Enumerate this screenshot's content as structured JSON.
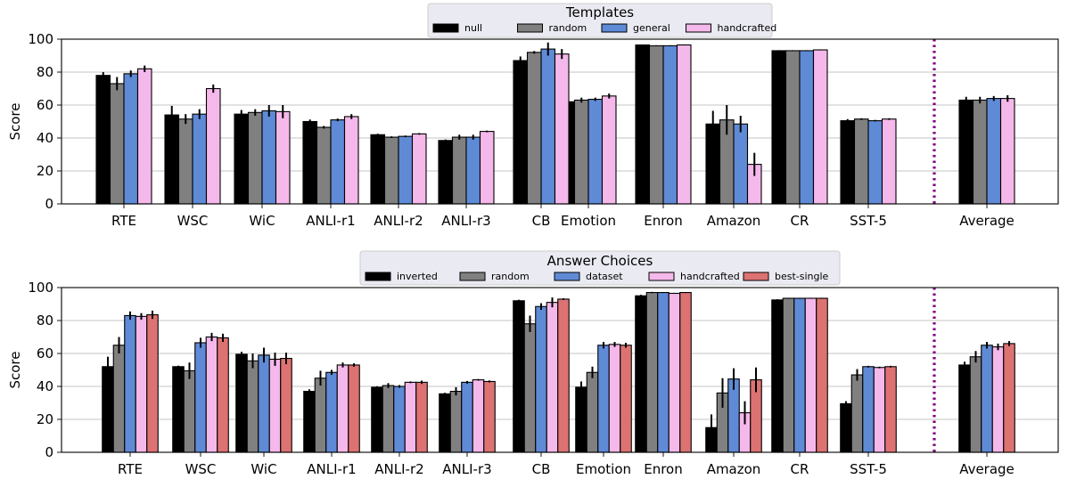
{
  "chart_data": [
    {
      "type": "bar",
      "legend_title": "Templates",
      "legend_position": "top-center",
      "ylabel": "Score",
      "ylim": [
        0,
        100
      ],
      "yticks": [
        0,
        20,
        40,
        60,
        80,
        100
      ],
      "grid": "horizontal",
      "categories": [
        "RTE",
        "WSC",
        "WiC",
        "ANLI-r1",
        "ANLI-r2",
        "ANLI-r3",
        "CB",
        "Emotion",
        "Enron",
        "Amazon",
        "CR",
        "SST-5",
        "Average"
      ],
      "separator_before": "Average",
      "series": [
        {
          "name": "null",
          "color": "#000000",
          "values": [
            78,
            54,
            54.5,
            50,
            42,
            38.5,
            87,
            62,
            96.5,
            48.5,
            93,
            50.5,
            63
          ],
          "errors": [
            2,
            5.5,
            2.5,
            1.2,
            0.6,
            0.6,
            2.5,
            1,
            0.3,
            8,
            0.3,
            1,
            2
          ]
        },
        {
          "name": "random",
          "color": "#808080",
          "values": [
            73,
            51.5,
            55.5,
            46.5,
            40.5,
            40.5,
            92,
            63,
            96,
            51,
            93,
            51.5,
            63
          ],
          "errors": [
            4,
            3,
            2,
            0.8,
            0.5,
            1.5,
            0.8,
            1.5,
            0.3,
            9,
            0.3,
            0.5,
            2
          ]
        },
        {
          "name": "general",
          "color": "#5f8ad6",
          "values": [
            79,
            54.5,
            56.5,
            51,
            41,
            40.5,
            94,
            63.5,
            96,
            48.5,
            93,
            50.5,
            64
          ],
          "errors": [
            2,
            3,
            3.5,
            0.8,
            0.5,
            1.5,
            4,
            1,
            0.3,
            5,
            0.3,
            0.5,
            1.5
          ]
        },
        {
          "name": "handcrafted",
          "color": "#f5b8ea",
          "values": [
            82,
            70,
            56,
            53,
            42.5,
            44,
            91,
            65.5,
            96.5,
            24,
            93.5,
            51.5,
            64
          ],
          "errors": [
            2,
            2.5,
            4,
            1.5,
            0.5,
            0.5,
            3,
            1.5,
            0.3,
            7,
            0.3,
            0.5,
            2
          ]
        }
      ]
    },
    {
      "type": "bar",
      "legend_title": "Answer Choices",
      "legend_position": "top-center",
      "ylabel": "Score",
      "ylim": [
        0,
        100
      ],
      "yticks": [
        0,
        20,
        40,
        60,
        80,
        100
      ],
      "grid": "horizontal",
      "categories": [
        "RTE",
        "WSC",
        "WiC",
        "ANLI-r1",
        "ANLI-r2",
        "ANLI-r3",
        "CB",
        "Emotion",
        "Enron",
        "Amazon",
        "CR",
        "SST-5",
        "Average"
      ],
      "separator_before": "Average",
      "series": [
        {
          "name": "inverted",
          "color": "#000000",
          "values": [
            52,
            52,
            59.5,
            37,
            39.5,
            35.5,
            92,
            39.5,
            95,
            15,
            92.5,
            29.5,
            53
          ],
          "errors": [
            6,
            0.6,
            1.5,
            1.2,
            0.6,
            0.6,
            0.6,
            3.5,
            0.6,
            8,
            0.4,
            1.5,
            2
          ]
        },
        {
          "name": "random",
          "color": "#808080",
          "values": [
            65,
            49.5,
            55.5,
            45,
            40.5,
            37,
            78,
            48.5,
            97,
            36,
            93.5,
            47,
            58
          ],
          "errors": [
            5,
            5,
            4.5,
            4.5,
            1.5,
            2.5,
            5,
            3.5,
            0.4,
            9,
            0.3,
            3.5,
            3.5
          ]
        },
        {
          "name": "dataset",
          "color": "#5f8ad6",
          "values": [
            83,
            66.5,
            59,
            48.5,
            40,
            42.5,
            88.5,
            65,
            97,
            44.5,
            93.5,
            52,
            65
          ],
          "errors": [
            2.5,
            3,
            4.5,
            1.5,
            0.8,
            0.8,
            2,
            2,
            0.3,
            6.5,
            0.3,
            0.5,
            2
          ]
        },
        {
          "name": "handcrafted",
          "color": "#f5b8ea",
          "values": [
            82.5,
            70,
            56.5,
            53,
            42.5,
            44,
            91,
            65.5,
            96.5,
            24,
            93.5,
            51.5,
            64
          ],
          "errors": [
            2,
            2.5,
            4,
            1.5,
            0.5,
            0.5,
            3,
            1.5,
            0.3,
            7,
            0.3,
            0.5,
            2
          ]
        },
        {
          "name": "best-single",
          "color": "#dc7372",
          "values": [
            83.5,
            69.5,
            57,
            53,
            42.5,
            43,
            93,
            65,
            97,
            44,
            93.5,
            52,
            66
          ],
          "errors": [
            2.5,
            2.5,
            3.5,
            1,
            1,
            0.6,
            0.5,
            1.5,
            0.3,
            7.5,
            0.3,
            0.5,
            1.5
          ]
        }
      ]
    }
  ]
}
